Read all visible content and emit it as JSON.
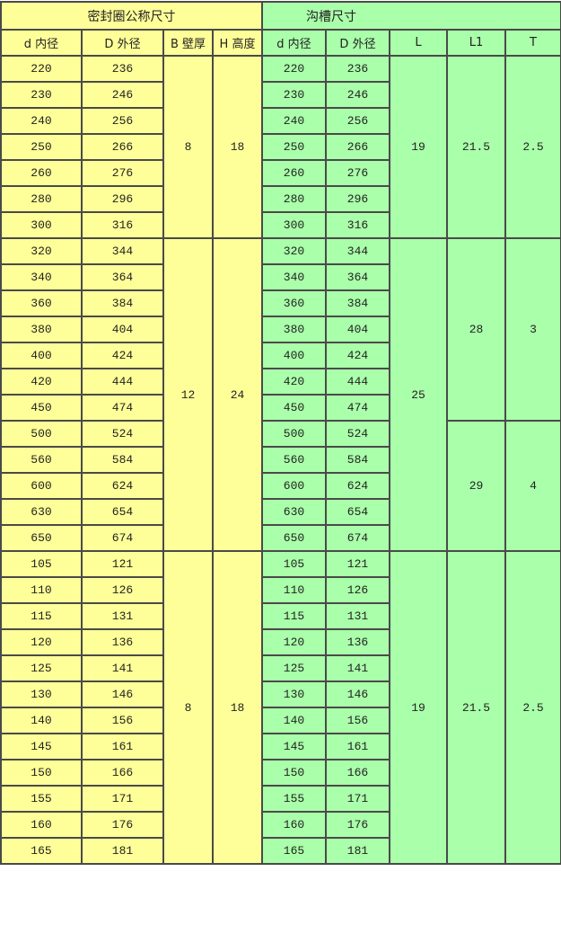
{
  "header": {
    "seal_group": "密封圈公称尺寸",
    "groove_group": "沟槽尺寸",
    "columns": [
      "d 内径",
      "D 外径",
      "B 壁厚",
      "H 高度",
      "d 内径",
      "D 外径",
      "L",
      "L1",
      "T"
    ]
  },
  "colors": {
    "seal": "#ffff99",
    "groove": "#aaffaa",
    "border": "#4a4a4a"
  },
  "groups": [
    {
      "B": "8",
      "H": "18",
      "L": "19",
      "subgroups": [
        {
          "L1": "21.5",
          "T": "2.5",
          "rows": [
            [
              "220",
              "236"
            ],
            [
              "230",
              "246"
            ],
            [
              "240",
              "256"
            ],
            [
              "250",
              "266"
            ],
            [
              "260",
              "276"
            ],
            [
              "280",
              "296"
            ],
            [
              "300",
              "316"
            ]
          ]
        }
      ]
    },
    {
      "B": "12",
      "H": "24",
      "L": "25",
      "subgroups": [
        {
          "L1": "28",
          "T": "3",
          "rows": [
            [
              "320",
              "344"
            ],
            [
              "340",
              "364"
            ],
            [
              "360",
              "384"
            ],
            [
              "380",
              "404"
            ],
            [
              "400",
              "424"
            ],
            [
              "420",
              "444"
            ],
            [
              "450",
              "474"
            ]
          ]
        },
        {
          "L1": "29",
          "T": "4",
          "rows": [
            [
              "500",
              "524"
            ],
            [
              "560",
              "584"
            ],
            [
              "600",
              "624"
            ],
            [
              "630",
              "654"
            ],
            [
              "650",
              "674"
            ]
          ]
        }
      ]
    },
    {
      "B": "8",
      "H": "18",
      "L": "19",
      "subgroups": [
        {
          "L1": "21.5",
          "T": "2.5",
          "rows": [
            [
              "105",
              "121"
            ],
            [
              "110",
              "126"
            ],
            [
              "115",
              "131"
            ],
            [
              "120",
              "136"
            ],
            [
              "125",
              "141"
            ],
            [
              "130",
              "146"
            ],
            [
              "140",
              "156"
            ],
            [
              "145",
              "161"
            ],
            [
              "150",
              "166"
            ],
            [
              "155",
              "171"
            ],
            [
              "160",
              "176"
            ],
            [
              "165",
              "181"
            ]
          ]
        }
      ]
    }
  ]
}
